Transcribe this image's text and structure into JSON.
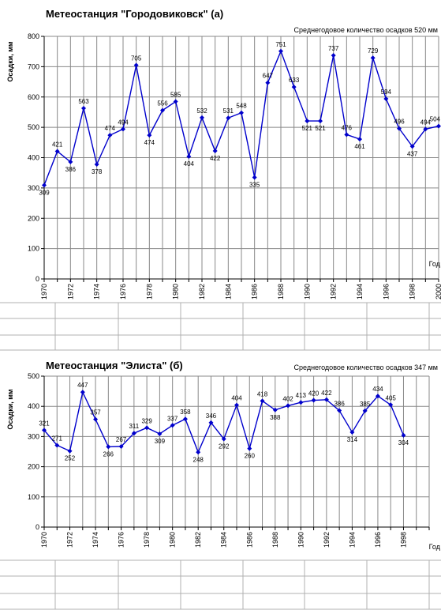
{
  "chart_data": [
    {
      "type": "line",
      "title": "Метеостанция \"Городовиковск\" (а)",
      "subtitle": "Среднегодовое количество осадков 520 мм",
      "xlabel": "Год",
      "ylabel": "Осадки, мм",
      "xlim": [
        1970,
        2000
      ],
      "ylim": [
        0,
        800
      ],
      "yticks": [
        0,
        100,
        200,
        300,
        400,
        500,
        600,
        700,
        800
      ],
      "xticks": [
        1970,
        1972,
        1974,
        1976,
        1978,
        1980,
        1982,
        1984,
        1986,
        1988,
        1990,
        1992,
        1994,
        1996,
        1998,
        2000
      ],
      "grid": true,
      "x": [
        1970,
        1971,
        1972,
        1973,
        1974,
        1975,
        1976,
        1977,
        1978,
        1979,
        1980,
        1981,
        1982,
        1983,
        1984,
        1985,
        1986,
        1987,
        1988,
        1989,
        1990,
        1991,
        1992,
        1993,
        1994,
        1995,
        1996,
        1997,
        1998,
        1999,
        2000
      ],
      "series": [
        {
          "values": [
            309,
            421,
            386,
            563,
            378,
            474,
            494,
            705,
            474,
            556,
            585,
            404,
            532,
            422,
            531,
            548,
            335,
            647,
            751,
            633,
            521,
            521,
            737,
            476,
            461,
            729,
            594,
            496,
            437,
            494,
            504
          ],
          "labels": [
            "309",
            "421",
            "386",
            "563",
            "378",
            "474",
            "494",
            "705",
            "474",
            "556",
            "585",
            "404",
            "532",
            "422",
            "531",
            "548",
            "335",
            "647",
            "751",
            "633",
            "521",
            "521",
            "737",
            "476",
            "461",
            "729",
            "594",
            "496",
            "437",
            "494",
            "504"
          ],
          "color": "#0000cc"
        }
      ]
    },
    {
      "type": "line",
      "title": "Метеостанция \"Элиста\" (б)",
      "subtitle": "Среднегодовое количество осадков 347 мм",
      "xlabel": "Год",
      "ylabel": "Осадки, мм",
      "xlim": [
        1970,
        2000
      ],
      "ylim": [
        0,
        500
      ],
      "yticks": [
        0,
        100,
        200,
        300,
        400,
        500
      ],
      "xticks": [
        1970,
        1972,
        1974,
        1976,
        1978,
        1980,
        1982,
        1984,
        1986,
        1988,
        1990,
        1992,
        1994,
        1996,
        1998
      ],
      "grid": true,
      "x": [
        1970,
        1971,
        1972,
        1973,
        1974,
        1975,
        1976,
        1977,
        1978,
        1979,
        1980,
        1981,
        1982,
        1983,
        1984,
        1985,
        1986,
        1987,
        1988,
        1989,
        1990,
        1991,
        1992,
        1993,
        1994,
        1995,
        1996,
        1997,
        1998
      ],
      "series": [
        {
          "values": [
            321,
            271,
            252,
            447,
            357,
            266,
            267,
            311,
            329,
            309,
            337,
            358,
            248,
            346,
            292,
            404,
            260,
            418,
            388,
            402,
            413,
            420,
            422,
            386,
            314,
            385,
            434,
            405,
            304
          ],
          "labels": [
            "321",
            "271",
            "252",
            "447",
            "357",
            "266",
            "267",
            "311",
            "329",
            "309",
            "337",
            "358",
            "248",
            "346",
            "292",
            "404",
            "260",
            "418",
            "388",
            "402",
            "413",
            "420",
            "422",
            "386",
            "314",
            "385",
            "434",
            "405",
            "304"
          ],
          "color": "#0000cc"
        }
      ]
    }
  ]
}
